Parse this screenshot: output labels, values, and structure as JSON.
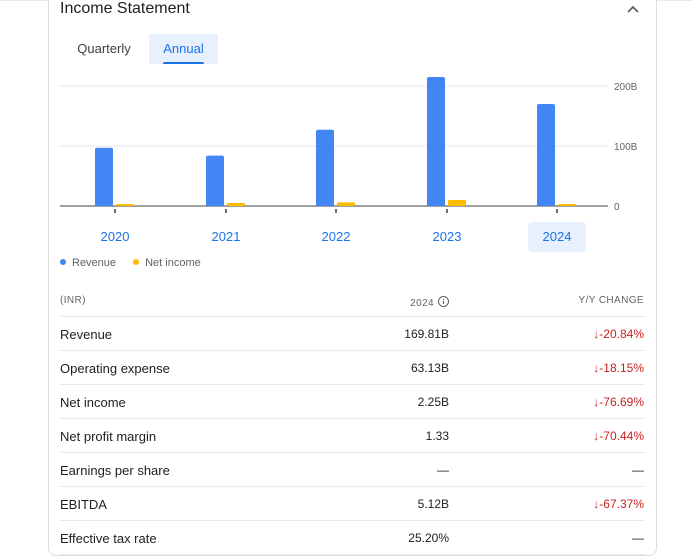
{
  "card": {
    "title": "Income Statement"
  },
  "tabs": [
    {
      "label": "Quarterly",
      "selected": false
    },
    {
      "label": "Annual",
      "selected": true
    }
  ],
  "chart_data": {
    "type": "bar",
    "categories": [
      "2020",
      "2021",
      "2022",
      "2023",
      "2024"
    ],
    "selected_category": "2024",
    "series": [
      {
        "name": "Revenue",
        "color": "#4285f4",
        "values": [
          97,
          84,
          127,
          215,
          170
        ]
      },
      {
        "name": "Net income",
        "color": "#fbbc04",
        "values": [
          3,
          5,
          6,
          10,
          2.25
        ]
      }
    ],
    "ylim": [
      0,
      200
    ],
    "y_ticks": [
      {
        "value": 0,
        "label": "0"
      },
      {
        "value": 100,
        "label": "100B"
      },
      {
        "value": 200,
        "label": "200B"
      }
    ],
    "legend_position": "bottom-left",
    "grid": true
  },
  "legend": [
    {
      "label": "Revenue",
      "color": "#4285f4"
    },
    {
      "label": "Net income",
      "color": "#fbbc04"
    }
  ],
  "table": {
    "headers": {
      "label": "(INR)",
      "year": "2024",
      "change": "Y/Y CHANGE"
    },
    "rows": [
      {
        "label": "Revenue",
        "value": "169.81B",
        "change": "↓-20.84%",
        "trend": "neg"
      },
      {
        "label": "Operating expense",
        "value": "63.13B",
        "change": "↓-18.15%",
        "trend": "neg"
      },
      {
        "label": "Net income",
        "value": "2.25B",
        "change": "↓-76.69%",
        "trend": "neg"
      },
      {
        "label": "Net profit margin",
        "value": "1.33",
        "change": "↓-70.44%",
        "trend": "neg"
      },
      {
        "label": "Earnings per share",
        "value": "—",
        "change": "—",
        "trend": "flat"
      },
      {
        "label": "EBITDA",
        "value": "5.12B",
        "change": "↓-67.37%",
        "trend": "neg"
      },
      {
        "label": "Effective tax rate",
        "value": "25.20%",
        "change": "—",
        "trend": "flat"
      }
    ]
  }
}
